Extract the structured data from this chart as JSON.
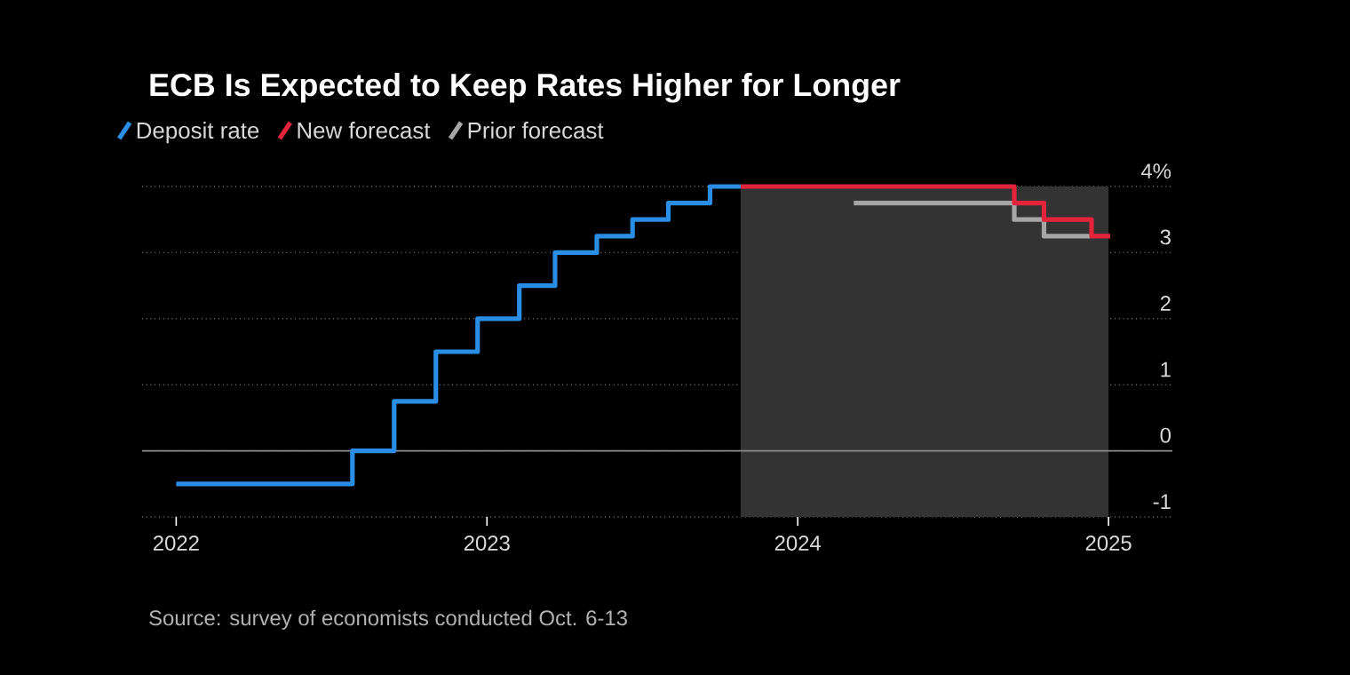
{
  "chart_data": {
    "type": "step",
    "title": "ECB Is Expected to Keep Rates Higher for Longer",
    "series": [
      {
        "name": "Deposit rate",
        "color": "#2b8ee6",
        "x": [
          "2022-01-01",
          "2022-07-27",
          "2022-09-14",
          "2022-11-02",
          "2022-12-21",
          "2023-02-08",
          "2023-03-22",
          "2023-05-10",
          "2023-06-21",
          "2023-08-02",
          "2023-09-20",
          "2023-10-26"
        ],
        "values": [
          -0.5,
          0,
          0.75,
          1.5,
          2,
          2.5,
          3,
          3.25,
          3.5,
          3.75,
          4,
          4
        ]
      },
      {
        "name": "New forecast",
        "color": "#e3243b",
        "x": [
          "2023-10-26",
          "2024-09-12",
          "2024-10-17",
          "2024-12-12",
          "2025-01-03"
        ],
        "values": [
          4,
          3.75,
          3.5,
          3.25,
          3.25
        ]
      },
      {
        "name": "Prior forecast",
        "color": "#a6a6a6",
        "x": [
          "2024-03-07",
          "2024-09-12",
          "2024-10-17",
          "2024-12-10"
        ],
        "values": [
          3.75,
          3.5,
          3.25,
          3.25
        ]
      }
    ],
    "xlim": [
      "2021-11-22",
      "2025-03-17"
    ],
    "xticks": [
      "2022",
      "2023",
      "2024",
      "2025"
    ],
    "ylim": [
      -1,
      4
    ],
    "yticks": [
      {
        "value": 4,
        "label": "4%"
      },
      3,
      2,
      1,
      0,
      -1
    ],
    "grid": "y",
    "legend": "top left",
    "marker": "none",
    "line_style": "solid",
    "ref_lines": [
      {
        "axis": "y",
        "value": 0,
        "color": "#8c8c8c"
      }
    ],
    "bands": [
      {
        "axis": "x",
        "from": "2023-10-26",
        "to": "2025-01-01",
        "color": "#333333"
      }
    ],
    "annotations": [
      "Source: survey of economists conducted Oct. 6-13"
    ]
  }
}
